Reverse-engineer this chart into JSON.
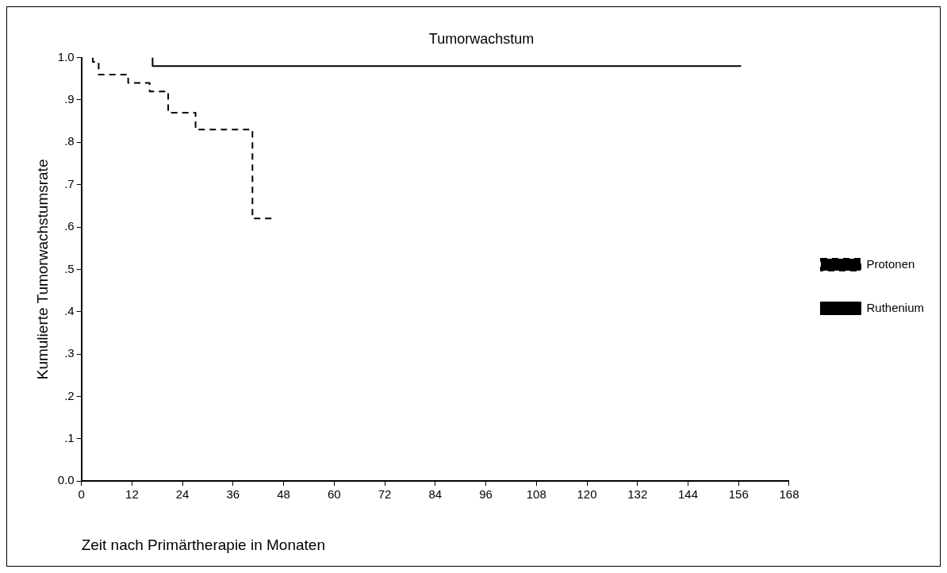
{
  "chart_data": {
    "type": "step",
    "title": "Tumorwachstum",
    "xlabel": "Zeit nach Primärtherapie in Monaten",
    "ylabel": "Kumulierte Tumorwachstumsrate",
    "series": [
      {
        "name": "Protonen",
        "color": "#000000",
        "line_style": "dashed",
        "x": [
          2.7,
          2.7,
          4.1,
          11.1,
          16.2,
          20.6,
          27.1,
          40.6,
          45.4
        ],
        "values": [
          1.0,
          0.99,
          0.96,
          0.94,
          0.92,
          0.87,
          0.83,
          0.62,
          0.62
        ]
      },
      {
        "name": "Ruthenium",
        "color": "#000000",
        "line_style": "solid",
        "x": [
          16.9,
          16.9,
          156.6
        ],
        "values": [
          1.0,
          0.98,
          0.98
        ]
      }
    ],
    "xlim": [
      0,
      168
    ],
    "xticks": [
      0,
      12,
      24,
      36,
      48,
      60,
      72,
      84,
      96,
      108,
      120,
      132,
      144,
      156,
      168
    ],
    "ylim": [
      0,
      1
    ],
    "yticks": [
      {
        "value": 0,
        "label": "0.0"
      },
      {
        "value": 0.1,
        "label": ".1"
      },
      {
        "value": 0.2,
        "label": ".2"
      },
      {
        "value": 0.3,
        "label": ".3"
      },
      {
        "value": 0.4,
        "label": ".4"
      },
      {
        "value": 0.5,
        "label": ".5"
      },
      {
        "value": 0.6,
        "label": ".6"
      },
      {
        "value": 0.7,
        "label": ".7"
      },
      {
        "value": 0.8,
        "label": ".8"
      },
      {
        "value": 0.9,
        "label": ".9"
      },
      {
        "value": 1,
        "label": "1.0"
      }
    ],
    "grid": false,
    "legend": "right",
    "marker": "none"
  }
}
